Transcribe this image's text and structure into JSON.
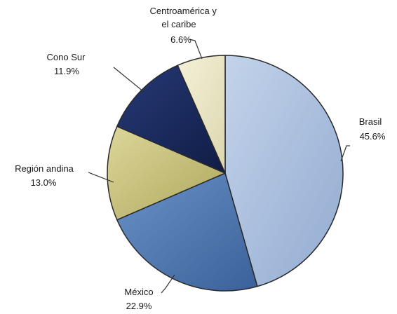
{
  "chart_data": {
    "type": "pie",
    "title": "",
    "slices": [
      {
        "name": "Brasil",
        "value": 45.6,
        "value_label": "45.6%",
        "color": "#A9BFDE"
      },
      {
        "name": "México",
        "value": 22.9,
        "value_label": "22.9%",
        "color": "#4F79B3"
      },
      {
        "name": "Región andina",
        "value": 13.0,
        "value_label": "13.0%",
        "color": "#C9C27A"
      },
      {
        "name": "Cono Sur",
        "value": 11.9,
        "value_label": "11.9%",
        "color": "#18285A"
      },
      {
        "name": "Centroamérica y el caribe",
        "value": 6.6,
        "value_label": "6.6%",
        "color": "#EAE6C4"
      }
    ],
    "start_angle": "12 o'clock",
    "direction": "clockwise",
    "legend": "none (labels with leader lines)"
  }
}
